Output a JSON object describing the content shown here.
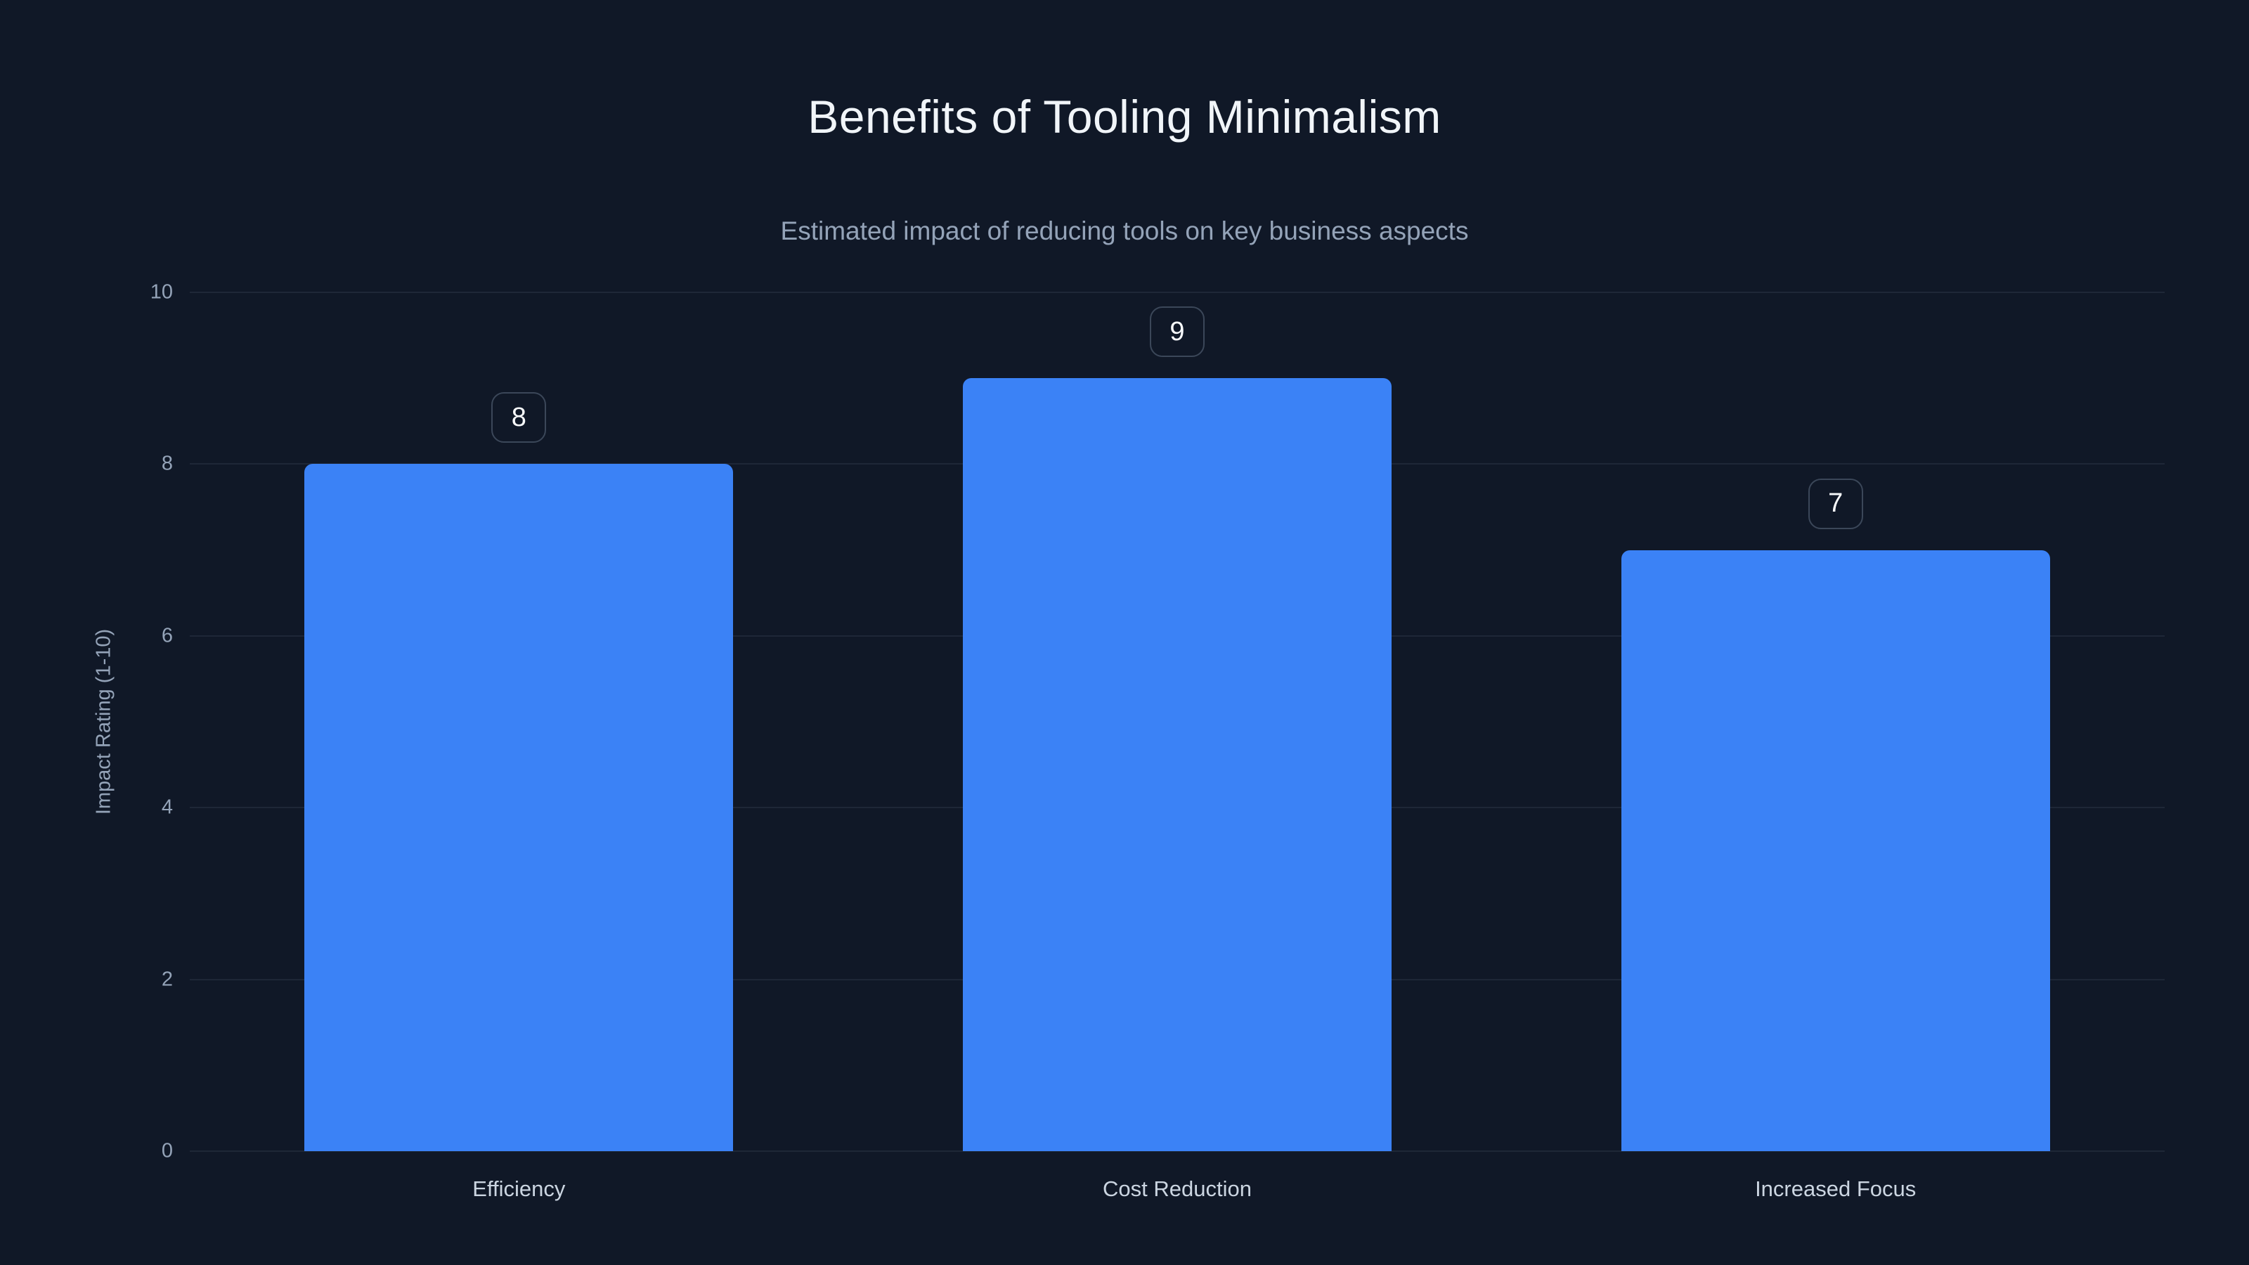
{
  "page": {
    "title": "Benefits of Tooling Minimalism",
    "subtitle": "Estimated impact of reducing tools on key business aspects"
  },
  "chart_data": {
    "type": "bar",
    "title": "Benefits of Tooling Minimalism",
    "subtitle": "Estimated impact of reducing tools on key business aspects",
    "categories": [
      "Efficiency",
      "Cost Reduction",
      "Increased Focus"
    ],
    "values": [
      8,
      9,
      7
    ],
    "value_labels": [
      "8",
      "9",
      "7"
    ],
    "xlabel": "",
    "ylabel": "Impact Rating (1-10)",
    "ylim": [
      0,
      10
    ],
    "yticks": [
      0,
      2,
      4,
      6,
      8,
      10
    ],
    "grid": "horizontal",
    "legend": "none"
  },
  "colors": {
    "background": "#101827",
    "bar": "#3b82f6",
    "gridline": "#1e2737",
    "title": "#f1f5f9",
    "subtitle": "#94a3b8",
    "tick_label": "#94a3b8",
    "category_label": "#cbd5e1",
    "badge_border": "#3b4759",
    "badge_text": "#f8fafc"
  }
}
